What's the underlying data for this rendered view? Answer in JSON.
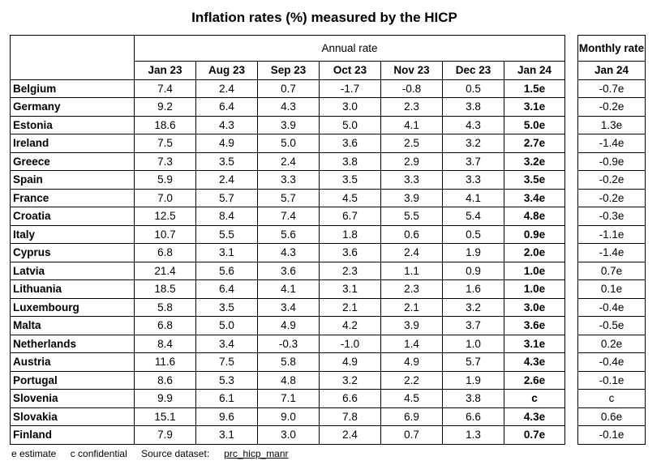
{
  "title": "Inflation rates (%) measured by the HICP",
  "annual_header": "Annual rate",
  "monthly_header": "Monthly rate",
  "columns": [
    "Jan 23",
    "Aug 23",
    "Sep 23",
    "Oct 23",
    "Nov 23",
    "Dec 23",
    "Jan 24"
  ],
  "monthly_column": "Jan 24",
  "rows": [
    {
      "country": "Belgium",
      "values": [
        "7.4",
        "2.4",
        "0.7",
        "-1.7",
        "-0.8",
        "0.5",
        "1.5e"
      ],
      "monthly": "-0.7e"
    },
    {
      "country": "Germany",
      "values": [
        "9.2",
        "6.4",
        "4.3",
        "3.0",
        "2.3",
        "3.8",
        "3.1e"
      ],
      "monthly": "-0.2e"
    },
    {
      "country": "Estonia",
      "values": [
        "18.6",
        "4.3",
        "3.9",
        "5.0",
        "4.1",
        "4.3",
        "5.0e"
      ],
      "monthly": "1.3e"
    },
    {
      "country": "Ireland",
      "values": [
        "7.5",
        "4.9",
        "5.0",
        "3.6",
        "2.5",
        "3.2",
        "2.7e"
      ],
      "monthly": "-1.4e"
    },
    {
      "country": "Greece",
      "values": [
        "7.3",
        "3.5",
        "2.4",
        "3.8",
        "2.9",
        "3.7",
        "3.2e"
      ],
      "monthly": "-0.9e"
    },
    {
      "country": "Spain",
      "values": [
        "5.9",
        "2.4",
        "3.3",
        "3.5",
        "3.3",
        "3.3",
        "3.5e"
      ],
      "monthly": "-0.2e"
    },
    {
      "country": "France",
      "values": [
        "7.0",
        "5.7",
        "5.7",
        "4.5",
        "3.9",
        "4.1",
        "3.4e"
      ],
      "monthly": "-0.2e"
    },
    {
      "country": "Croatia",
      "values": [
        "12.5",
        "8.4",
        "7.4",
        "6.7",
        "5.5",
        "5.4",
        "4.8e"
      ],
      "monthly": "-0.3e"
    },
    {
      "country": "Italy",
      "values": [
        "10.7",
        "5.5",
        "5.6",
        "1.8",
        "0.6",
        "0.5",
        "0.9e"
      ],
      "monthly": "-1.1e"
    },
    {
      "country": "Cyprus",
      "values": [
        "6.8",
        "3.1",
        "4.3",
        "3.6",
        "2.4",
        "1.9",
        "2.0e"
      ],
      "monthly": "-1.4e"
    },
    {
      "country": "Latvia",
      "values": [
        "21.4",
        "5.6",
        "3.6",
        "2.3",
        "1.1",
        "0.9",
        "1.0e"
      ],
      "monthly": "0.7e"
    },
    {
      "country": "Lithuania",
      "values": [
        "18.5",
        "6.4",
        "4.1",
        "3.1",
        "2.3",
        "1.6",
        "1.0e"
      ],
      "monthly": "0.1e"
    },
    {
      "country": "Luxembourg",
      "values": [
        "5.8",
        "3.5",
        "3.4",
        "2.1",
        "2.1",
        "3.2",
        "3.0e"
      ],
      "monthly": "-0.4e"
    },
    {
      "country": "Malta",
      "values": [
        "6.8",
        "5.0",
        "4.9",
        "4.2",
        "3.9",
        "3.7",
        "3.6e"
      ],
      "monthly": "-0.5e"
    },
    {
      "country": "Netherlands",
      "values": [
        "8.4",
        "3.4",
        "-0.3",
        "-1.0",
        "1.4",
        "1.0",
        "3.1e"
      ],
      "monthly": "0.2e"
    },
    {
      "country": "Austria",
      "values": [
        "11.6",
        "7.5",
        "5.8",
        "4.9",
        "4.9",
        "5.7",
        "4.3e"
      ],
      "monthly": "-0.4e"
    },
    {
      "country": "Portugal",
      "values": [
        "8.6",
        "5.3",
        "4.8",
        "3.2",
        "2.2",
        "1.9",
        "2.6e"
      ],
      "monthly": "-0.1e"
    },
    {
      "country": "Slovenia",
      "values": [
        "9.9",
        "6.1",
        "7.1",
        "6.6",
        "4.5",
        "3.8",
        "c"
      ],
      "monthly": "c"
    },
    {
      "country": "Slovakia",
      "values": [
        "15.1",
        "9.6",
        "9.0",
        "7.8",
        "6.9",
        "6.6",
        "4.3e"
      ],
      "monthly": "0.6e"
    },
    {
      "country": "Finland",
      "values": [
        "7.9",
        "3.1",
        "3.0",
        "2.4",
        "0.7",
        "1.3",
        "0.7e"
      ],
      "monthly": "-0.1e"
    }
  ],
  "footer": {
    "estimate": "e estimate",
    "confidential": "c confidential",
    "source_label": "Source dataset:",
    "source_link": "prc_hicp_manr"
  }
}
